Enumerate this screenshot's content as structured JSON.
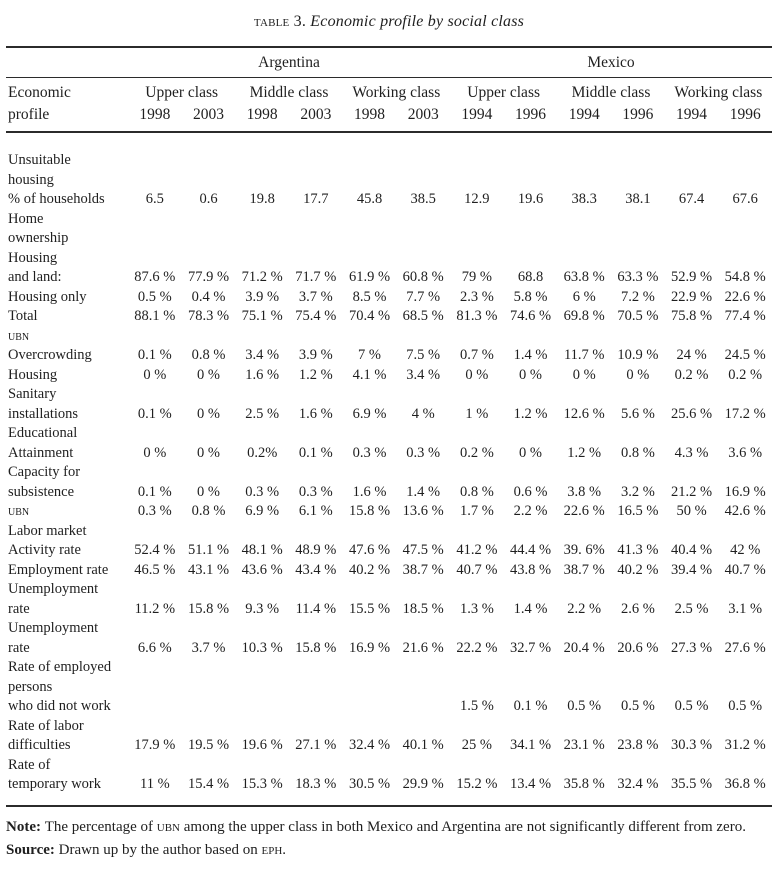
{
  "title_segments": [
    {
      "t": "TABLE",
      "sc": true
    },
    {
      "t": " 3. "
    },
    {
      "t": "Economic profile by social class",
      "i": true
    }
  ],
  "table": {
    "header": {
      "countries": [
        "Argentina",
        "Mexico"
      ],
      "row_label_lines": [
        "Economic",
        "profile"
      ],
      "class_groups": [
        {
          "label": "Upper class",
          "years": [
            "1998",
            "2003"
          ]
        },
        {
          "label": "Middle class",
          "years": [
            "1998",
            "2003"
          ]
        },
        {
          "label": "Working class",
          "years": [
            "1998",
            "2003"
          ]
        },
        {
          "label": "Upper class",
          "years": [
            "1994",
            "1996"
          ]
        },
        {
          "label": "Middle class",
          "years": [
            "1994",
            "1996"
          ]
        },
        {
          "label": "Working class",
          "years": [
            "1994",
            "1996"
          ]
        }
      ]
    },
    "rows": [
      {
        "lines": [
          "Unsuitable",
          "housing",
          "% of households"
        ],
        "values": [
          "6.5",
          "0.6",
          "19.8",
          "17.7",
          "45.8",
          "38.5",
          "12.9",
          "19.6",
          "38.3",
          "38.1",
          "67.4",
          "67.6"
        ]
      },
      {
        "lines": [
          "Home",
          "ownership"
        ],
        "values": []
      },
      {
        "lines": [
          "Housing",
          "and land:"
        ],
        "values": [
          "87.6 %",
          "77.9 %",
          "71.2 %",
          "71.7 %",
          "61.9 %",
          "60.8 %",
          "79 %",
          "68.8",
          "63.8 %",
          "63.3 %",
          "52.9 %",
          "54.8 %"
        ]
      },
      {
        "lines": [
          "Housing only"
        ],
        "values": [
          "0.5 %",
          "0.4 %",
          "3.9 %",
          "3.7 %",
          "8.5 %",
          "7.7 %",
          "2.3 %",
          "5.8 %",
          "6 %",
          "7.2 %",
          "22.9 %",
          "22.6 %"
        ]
      },
      {
        "lines": [
          "Total"
        ],
        "values": [
          "88.1 %",
          "78.3 %",
          "75.1 %",
          "75.4 %",
          "70.4 %",
          "68.5 %",
          "81.3 %",
          "74.6 %",
          "69.8 %",
          "70.5 %",
          "75.8 %",
          "77.4 %"
        ]
      },
      {
        "lines": [
          {
            "text": "UBN",
            "sc": true
          }
        ],
        "values": []
      },
      {
        "lines": [
          "Overcrowding"
        ],
        "values": [
          "0.1 %",
          "0.8 %",
          "3.4 %",
          "3.9 %",
          "7 %",
          "7.5 %",
          "0.7 %",
          "1.4 %",
          "11.7 %",
          "10.9 %",
          "24 %",
          "24.5 %"
        ]
      },
      {
        "lines": [
          "Housing"
        ],
        "values": [
          "0 %",
          "0 %",
          "1.6 %",
          "1.2 %",
          "4.1 %",
          "3.4 %",
          "0 %",
          "0 %",
          "0 %",
          "0 %",
          "0.2 %",
          "0.2 %"
        ]
      },
      {
        "lines": [
          "Sanitary",
          "installations"
        ],
        "values": [
          "0.1 %",
          "0 %",
          "2.5 %",
          "1.6 %",
          "6.9 %",
          "4 %",
          "1 %",
          "1.2 %",
          "12.6 %",
          "5.6 %",
          "25.6 %",
          "17.2 %"
        ]
      },
      {
        "lines": [
          "Educational",
          "Attainment"
        ],
        "values": [
          "0 %",
          "0 %",
          "0.2%",
          "0.1 %",
          "0.3 %",
          "0.3 %",
          "0.2 %",
          "0 %",
          "1.2 %",
          "0.8 %",
          "4.3 %",
          "3.6 %"
        ]
      },
      {
        "lines": [
          "Capacity for",
          "subsistence"
        ],
        "values": [
          "0.1 %",
          "0 %",
          "0.3 %",
          "0.3 %",
          "1.6 %",
          "1.4 %",
          "0.8 %",
          "0.6 %",
          "3.8 %",
          "3.2 %",
          "21.2 %",
          "16.9 %"
        ]
      },
      {
        "lines": [
          {
            "text": "UBN",
            "sc": true
          }
        ],
        "values": [
          "0.3 %",
          "0.8 %",
          "6.9 %",
          "6.1 %",
          "15.8 %",
          "13.6 %",
          "1.7 %",
          "2.2 %",
          "22.6 %",
          "16.5 %",
          "50 %",
          "42.6 %"
        ]
      },
      {
        "lines": [
          "Labor market"
        ],
        "values": []
      },
      {
        "lines": [
          "Activity rate"
        ],
        "values": [
          "52.4 %",
          "51.1 %",
          "48.1 %",
          "48.9 %",
          "47.6 %",
          "47.5 %",
          "41.2 %",
          "44.4 %",
          "39. 6%",
          "41.3 %",
          "40.4 %",
          "42 %"
        ]
      },
      {
        "lines": [
          "Employment rate"
        ],
        "values": [
          "46.5 %",
          "43.1 %",
          "43.6 %",
          "43.4 %",
          "40.2 %",
          "38.7 %",
          "40.7 %",
          "43.8 %",
          "38.7 %",
          "40.2 %",
          "39.4 %",
          "40.7 %"
        ]
      },
      {
        "lines": [
          "Unemployment",
          "rate"
        ],
        "values": [
          "11.2 %",
          "15.8 %",
          "9.3 %",
          "11.4 %",
          "15.5 %",
          "18.5 %",
          "1.3 %",
          "1.4 %",
          "2.2 %",
          "2.6 %",
          "2.5 %",
          "3.1 %"
        ]
      },
      {
        "lines": [
          "Unemployment",
          "rate"
        ],
        "values": [
          "6.6 %",
          "3.7 %",
          "10.3 %",
          "15.8 %",
          "16.9 %",
          "21.6 %",
          "22.2 %",
          "32.7 %",
          "20.4 %",
          "20.6 %",
          "27.3 %",
          "27.6 %"
        ]
      },
      {
        "lines": [
          "Rate of employed",
          "persons",
          "who did not work"
        ],
        "values": [
          "",
          "",
          "",
          "",
          "",
          "",
          "1.5 %",
          "0.1 %",
          "0.5 %",
          "0.5 %",
          "0.5 %",
          "0.5 %"
        ]
      },
      {
        "lines": [
          "Rate of labor",
          "difficulties"
        ],
        "values": [
          "17.9 %",
          "19.5 %",
          "19.6 %",
          "27.1 %",
          "32.4 %",
          "40.1 %",
          "25 %",
          "34.1 %",
          "23.1 %",
          "23.8 %",
          "30.3 %",
          "31.2 %"
        ]
      },
      {
        "lines": [
          "Rate of",
          "temporary work"
        ],
        "values": [
          "11 %",
          "15.4 %",
          "15.3 %",
          "18.3 %",
          "30.5 %",
          "29.9 %",
          "15.2 %",
          "13.4 %",
          "35.8 %",
          "32.4 %",
          "35.5 %",
          "36.8 %"
        ]
      }
    ]
  },
  "footer": {
    "note_segments": [
      {
        "t": "Note: ",
        "b": true
      },
      {
        "t": "The percentage of "
      },
      {
        "t": "UBN",
        "sc": true
      },
      {
        "t": " among the upper class in both Mexico and Argentina are not significantly different from zero."
      }
    ],
    "source_segments": [
      {
        "t": "Source: ",
        "b": true
      },
      {
        "t": "Drawn up by the author based on "
      },
      {
        "t": "EPH",
        "sc": true
      },
      {
        "t": "."
      }
    ]
  }
}
